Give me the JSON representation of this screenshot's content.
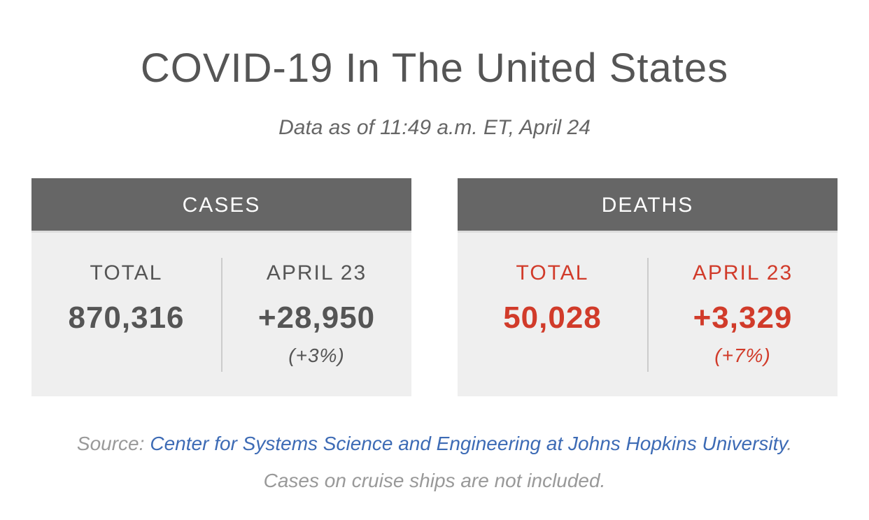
{
  "title": "COVID-19 In The United States",
  "subtitle": "Data as of 11:49 a.m. ET, April 24",
  "panels": [
    {
      "header": "CASES",
      "columns": [
        {
          "label": "TOTAL",
          "value": "870,316"
        },
        {
          "label": "APRIL 23",
          "value": "+28,950",
          "change": "(+3%)"
        }
      ]
    },
    {
      "header": "DEATHS",
      "columns": [
        {
          "label": "TOTAL",
          "value": "50,028"
        },
        {
          "label": "APRIL 23",
          "value": "+3,329",
          "change": "(+7%)"
        }
      ]
    }
  ],
  "footer": {
    "prefix": "Source:",
    "link": "Center for Systems Science and Engineering at Johns Hopkins University",
    "suffix": ". Cases on cruise ships are not included."
  }
}
